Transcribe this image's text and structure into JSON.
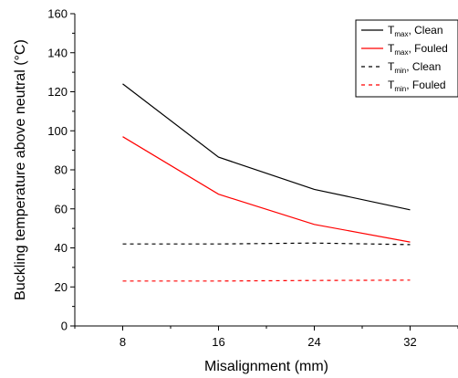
{
  "chart_data": {
    "type": "line",
    "xlabel": "Misalignment (mm)",
    "ylabel": "Buckling temperature above neutral (°C)",
    "x": [
      8,
      16,
      24,
      32
    ],
    "xticks": [
      "8",
      "16",
      "24",
      "32"
    ],
    "xlim": [
      4,
      36
    ],
    "ylim": [
      0,
      160
    ],
    "yticks": [
      "0",
      "20",
      "40",
      "60",
      "80",
      "100",
      "120",
      "140",
      "160"
    ],
    "grid": false,
    "legend_position": "top-right",
    "series": [
      {
        "name": "T_max, Clean",
        "legend_main": "T",
        "legend_sub": "max",
        "legend_tail": ", Clean",
        "color": "#000000",
        "dash": "solid",
        "values": [
          124,
          86.5,
          70,
          59.5
        ]
      },
      {
        "name": "T_max, Fouled",
        "legend_main": "T",
        "legend_sub": "max",
        "legend_tail": ", Fouled",
        "color": "#ff0000",
        "dash": "solid",
        "values": [
          97,
          67.5,
          52,
          43
        ]
      },
      {
        "name": "T_min, Clean",
        "legend_main": "T",
        "legend_sub": "min",
        "legend_tail": ", Clean",
        "color": "#000000",
        "dash": "dashed",
        "values": [
          42,
          42,
          42.5,
          41.7
        ]
      },
      {
        "name": "T_min, Fouled",
        "legend_main": "T",
        "legend_sub": "min",
        "legend_tail": ", Fouled",
        "color": "#ff0000",
        "dash": "dashed",
        "values": [
          23,
          23,
          23.3,
          23.5
        ]
      }
    ]
  }
}
